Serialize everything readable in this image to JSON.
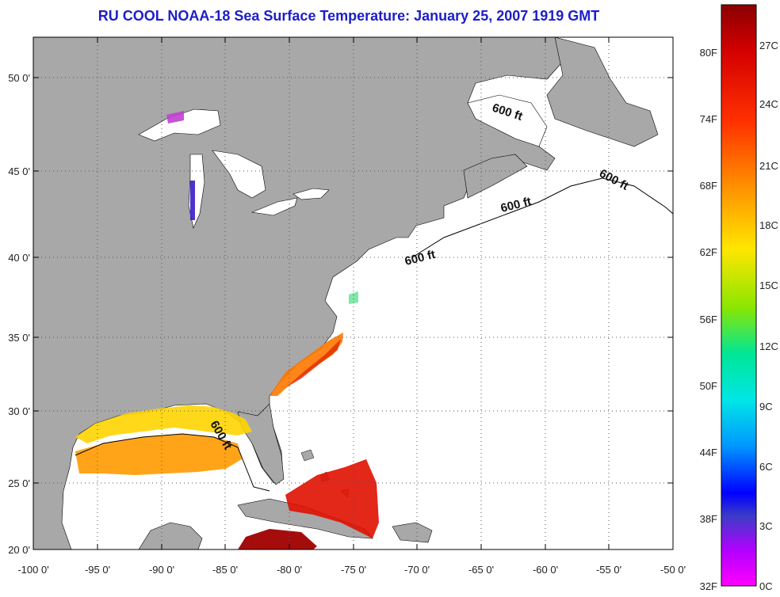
{
  "title": "RU COOL  NOAA-18  Sea Surface Temperature:  January 25, 2007 1919 GMT",
  "lat_ticks": [
    "50 0'",
    "45 0'",
    "40 0'",
    "35 0'",
    "30 0'",
    "25 0'",
    "20 0'"
  ],
  "lon_ticks": [
    "-100 0'",
    "-95 0'",
    "-90 0'",
    "-85 0'",
    "-80 0'",
    "-75 0'",
    "-70 0'",
    "-65 0'",
    "-60 0'",
    "-55 0'",
    "-50 0'"
  ],
  "isobath_label": "600 ft",
  "colorbar": {
    "fahrenheit_labels": [
      "80F",
      "74F",
      "68F",
      "62F",
      "56F",
      "50F",
      "44F",
      "38F",
      "32F"
    ],
    "celsius_labels": [
      "27C",
      "24C",
      "21C",
      "18C",
      "15C",
      "12C",
      "9C",
      "6C",
      "3C",
      "0C"
    ],
    "colors": [
      "#8b0000",
      "#e00000",
      "#ff5a00",
      "#ffa500",
      "#ffe600",
      "#9be600",
      "#00e68c",
      "#00e6e6",
      "#0096ff",
      "#0000ff",
      "#b400ff",
      "#ff00ff"
    ]
  },
  "colors": {
    "land": "#a8a8a8",
    "ocean": "#ffffff",
    "title": "#1d1ec8"
  }
}
